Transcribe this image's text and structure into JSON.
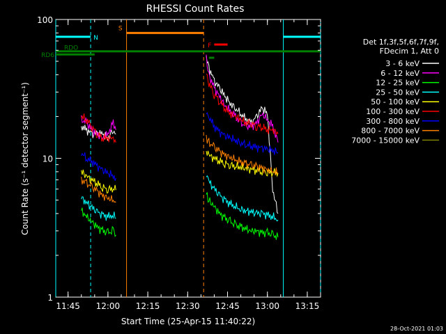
{
  "chart_data": {
    "type": "line",
    "title": "RHESSI Count Rates",
    "xlabel": "Start Time (25-Apr-15 11:40:22)",
    "ylabel": "Count Rate (s⁻¹ detector segment⁻¹)",
    "y_scale": "log",
    "ylim": [
      1,
      100
    ],
    "xlim": [
      "11:40:22",
      "13:20:00"
    ],
    "x_ticks": [
      "11:45",
      "12:00",
      "12:15",
      "12:30",
      "12:45",
      "13:00",
      "13:15"
    ],
    "y_ticks": [
      "1",
      "10",
      "100"
    ],
    "grid": false,
    "legend_position": "right",
    "legend_header": [
      "Det 1f,3f,5f,6f,7f,9f,",
      "FDecim 1, Att 0"
    ],
    "timestamp": "28-Oct-2021 01:03",
    "series": [
      {
        "name": "3 - 6 keV",
        "color": "#ffffff",
        "segments": [
          {
            "x": [
              "11:50",
              "11:52",
              "11:54",
              "11:56",
              "11:58",
              "12:00",
              "12:02",
              "12:03"
            ],
            "y": [
              17,
              16,
              15,
              15,
              15,
              14,
              16,
              15
            ]
          },
          {
            "x": [
              "12:37",
              "12:38",
              "12:40",
              "12:42",
              "12:44",
              "12:46",
              "12:48",
              "12:50",
              "12:52",
              "12:54",
              "12:56",
              "12:58",
              "13:00",
              "13:02",
              "13:04"
            ],
            "y": [
              55,
              45,
              36,
              32,
              28,
              25,
              23,
              21,
              19,
              18,
              20,
              23,
              21,
              6,
              4
            ]
          }
        ]
      },
      {
        "name": "6 - 12 keV",
        "color": "#ff00ff",
        "segments": [
          {
            "x": [
              "11:50",
              "11:52",
              "11:54",
              "11:56",
              "11:58",
              "12:00",
              "12:02",
              "12:03"
            ],
            "y": [
              19,
              18,
              16,
              15,
              14,
              15,
              18,
              16
            ]
          },
          {
            "x": [
              "12:37",
              "12:38",
              "12:40",
              "12:42",
              "12:44",
              "12:46",
              "12:48",
              "12:50",
              "12:52",
              "12:54",
              "12:56",
              "12:58",
              "13:00",
              "13:02",
              "13:04"
            ],
            "y": [
              52,
              40,
              32,
              28,
              24,
              22,
              20,
              18,
              17,
              17,
              18,
              21,
              19,
              17,
              13
            ]
          }
        ]
      },
      {
        "name": "12 - 25 keV",
        "color": "#00ff00",
        "segments": [
          {
            "x": [
              "11:50",
              "11:52",
              "11:54",
              "11:56",
              "11:58",
              "12:00",
              "12:02",
              "12:03"
            ],
            "y": [
              4.2,
              3.8,
              3.5,
              3.2,
              3.0,
              2.9,
              3.0,
              2.8
            ]
          },
          {
            "x": [
              "12:37",
              "12:38",
              "12:40",
              "12:42",
              "12:44",
              "12:46",
              "12:48",
              "12:50",
              "12:52",
              "12:54",
              "12:56",
              "12:58",
              "13:00",
              "13:02",
              "13:04"
            ],
            "y": [
              5.5,
              5.0,
              4.5,
              4.0,
              3.7,
              3.5,
              3.3,
              3.2,
              3.1,
              3.0,
              3.0,
              2.9,
              2.9,
              2.8,
              2.7
            ]
          }
        ]
      },
      {
        "name": "25 - 50 keV",
        "color": "#00ffff",
        "segments": [
          {
            "x": [
              "11:50",
              "11:52",
              "11:54",
              "11:56",
              "11:58",
              "12:00",
              "12:02",
              "12:03"
            ],
            "y": [
              5.2,
              4.8,
              4.4,
              4.1,
              3.9,
              3.8,
              3.9,
              3.7
            ]
          },
          {
            "x": [
              "12:37",
              "12:38",
              "12:40",
              "12:42",
              "12:44",
              "12:46",
              "12:48",
              "12:50",
              "12:52",
              "12:54",
              "12:56",
              "12:58",
              "13:00",
              "13:02",
              "13:04"
            ],
            "y": [
              7.5,
              6.8,
              6.0,
              5.4,
              5.0,
              4.7,
              4.5,
              4.3,
              4.2,
              4.1,
              4.0,
              4.0,
              3.9,
              3.8,
              3.6
            ]
          }
        ]
      },
      {
        "name": "50 - 100 keV",
        "color": "#ffff00",
        "segments": [
          {
            "x": [
              "11:50",
              "11:52",
              "11:54",
              "11:56",
              "11:58",
              "12:00",
              "12:02",
              "12:03"
            ],
            "y": [
              8.0,
              7.4,
              7.0,
              6.6,
              6.2,
              6.0,
              6.1,
              5.9
            ]
          },
          {
            "x": [
              "12:37",
              "12:38",
              "12:40",
              "12:42",
              "12:44",
              "12:46",
              "12:48",
              "12:50",
              "12:52",
              "12:54",
              "12:56",
              "12:58",
              "13:00",
              "13:02",
              "13:04"
            ],
            "y": [
              11,
              10.5,
              10,
              9.6,
              9.2,
              9.0,
              8.8,
              8.6,
              8.4,
              8.3,
              8.2,
              8.1,
              8.0,
              8.0,
              7.8
            ]
          }
        ]
      },
      {
        "name": "100 - 300 keV",
        "color": "#ff0000",
        "segments": [
          {
            "x": [
              "11:50",
              "11:52",
              "11:54",
              "11:56",
              "11:58",
              "12:00",
              "12:02",
              "12:03"
            ],
            "y": [
              20,
              19,
              17,
              15,
              14,
              14,
              14,
              13
            ]
          },
          {
            "x": [
              "12:37",
              "12:38",
              "12:40",
              "12:42",
              "12:44",
              "12:46",
              "12:48",
              "12:50",
              "12:52",
              "12:54",
              "12:56",
              "12:58",
              "13:00",
              "13:02",
              "13:04"
            ],
            "y": [
              42,
              35,
              29,
              26,
              23,
              21,
              20,
              19,
              18,
              18,
              17,
              17,
              16,
              16,
              15
            ]
          }
        ]
      },
      {
        "name": "300 - 800 keV",
        "color": "#0000ff",
        "segments": [
          {
            "x": [
              "11:50",
              "11:52",
              "11:54",
              "11:56",
              "11:58",
              "12:00",
              "12:02",
              "12:03"
            ],
            "y": [
              11,
              10,
              9.5,
              8.8,
              8.2,
              7.8,
              7.5,
              7.2
            ]
          },
          {
            "x": [
              "12:37",
              "12:38",
              "12:40",
              "12:42",
              "12:44",
              "12:46",
              "12:48",
              "12:50",
              "12:52",
              "12:54",
              "12:56",
              "12:58",
              "13:00",
              "13:02",
              "13:04"
            ],
            "y": [
              22,
              20,
              17,
              15.5,
              14.5,
              14,
              13.5,
              13,
              12.6,
              12.3,
              12,
              11.8,
              11.6,
              11.4,
              11
            ]
          }
        ]
      },
      {
        "name": "800 - 7000 keV",
        "color": "#ff8000",
        "segments": [
          {
            "x": [
              "11:50",
              "11:52",
              "11:54",
              "11:56",
              "11:58",
              "12:00",
              "12:02",
              "12:03"
            ],
            "y": [
              7.0,
              6.6,
              6.2,
              5.8,
              5.4,
              5.2,
              5.0,
              4.8
            ]
          },
          {
            "x": [
              "12:37",
              "12:38",
              "12:40",
              "12:42",
              "12:44",
              "12:46",
              "12:48",
              "12:50",
              "12:52",
              "12:54",
              "12:56",
              "12:58",
              "13:00",
              "13:02",
              "13:04"
            ],
            "y": [
              14,
              13,
              12,
              11.2,
              10.6,
              10.2,
              9.8,
              9.4,
              9.1,
              8.9,
              8.7,
              8.5,
              8.3,
              8.1,
              7.9
            ]
          }
        ]
      },
      {
        "name": "7000 - 15000 keV",
        "color": "#808000",
        "segments": []
      }
    ],
    "annotations": [
      {
        "label": "N",
        "color": "#00ffff",
        "type": "bar",
        "x_start": "11:40:22",
        "x_end": "11:53:30",
        "y": 75
      },
      {
        "label": "",
        "color": "#00ffff",
        "type": "bar",
        "x_start": "13:06",
        "x_end": "13:20:00",
        "y": 75
      },
      {
        "label": "S",
        "color": "#ff8000",
        "type": "bar",
        "x_start": "12:07",
        "x_end": "12:36",
        "y": 80
      },
      {
        "label": "F",
        "color": "#ff0000",
        "type": "bar",
        "x_start": "12:40",
        "x_end": "12:45",
        "y": 66
      },
      {
        "label": "RDO",
        "color": "#008000",
        "type": "bar",
        "x_start": "11:40:22",
        "x_end": "13:20:00",
        "y": 59
      },
      {
        "label": "RD6",
        "color": "#008000",
        "type": "bar",
        "x_start": "11:40:22",
        "x_end": "11:55",
        "y": 56
      },
      {
        "label": "",
        "color": "#008000",
        "type": "bar",
        "x_start": "12:38",
        "x_end": "12:40",
        "y": 53
      }
    ],
    "vlines": [
      {
        "x": "11:40:22",
        "color": "#00ffff",
        "style": "solid"
      },
      {
        "x": "11:53:30",
        "color": "#00ffff",
        "style": "dashed"
      },
      {
        "x": "12:07",
        "color": "#ff8000",
        "style": "solid"
      },
      {
        "x": "12:36",
        "color": "#ff8000",
        "style": "dashed"
      },
      {
        "x": "13:06",
        "color": "#00ffff",
        "style": "solid"
      },
      {
        "x": "13:20:00",
        "color": "#00ffff",
        "style": "dashed"
      }
    ]
  }
}
